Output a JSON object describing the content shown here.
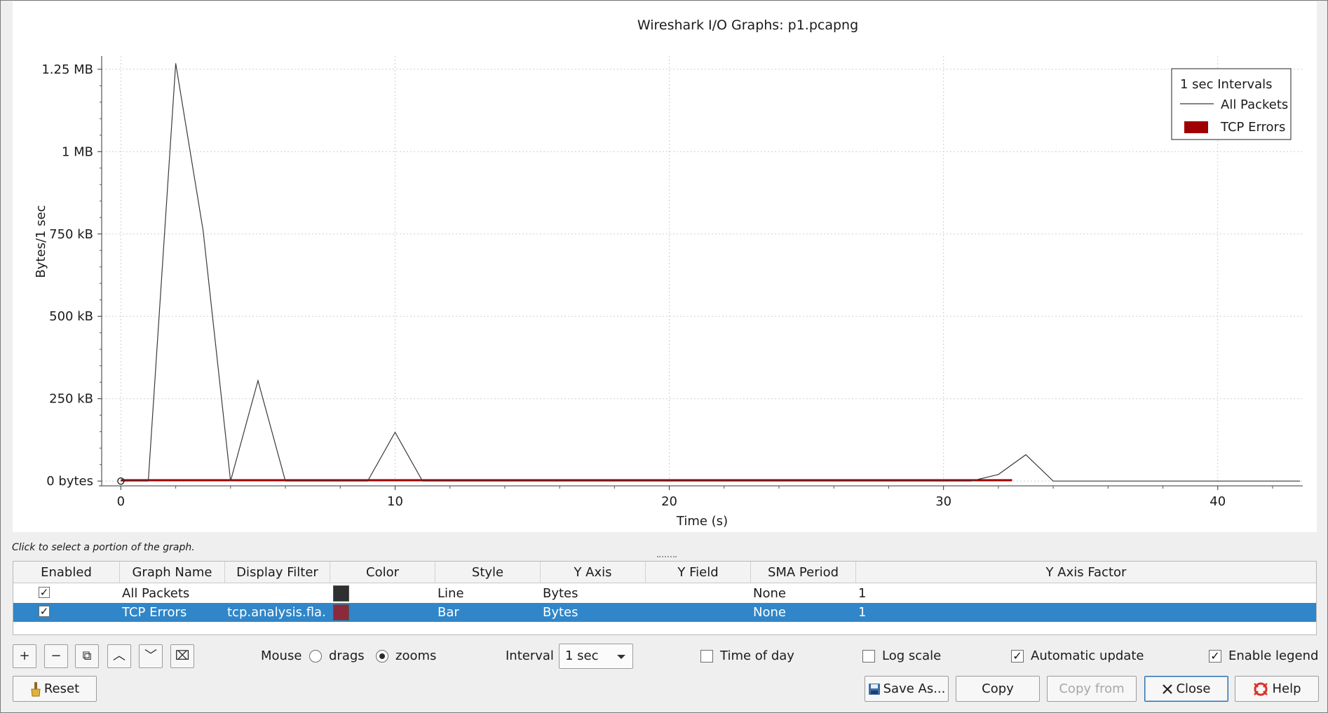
{
  "chart_data": {
    "type": "line",
    "title": "Wireshark I/O Graphs: p1.pcapng",
    "xlabel": "Time (s)",
    "ylabel": "Bytes/1 sec",
    "xlim": [
      -0.7,
      43.1
    ],
    "ylim": [
      -6000,
      1290000
    ],
    "x_ticks": [
      0,
      10,
      20,
      30,
      40
    ],
    "x_tick_labels": [
      "0",
      "10",
      "20",
      "30",
      "40"
    ],
    "y_ticks": [
      0,
      250000,
      500000,
      750000,
      1000000,
      1250000
    ],
    "y_tick_labels": [
      "0 bytes",
      "250 kB",
      "500 kB",
      "750 kB",
      "1 MB",
      "1.25 MB"
    ],
    "grid": true,
    "legend_position": "top-right",
    "legend_title": "1 sec Intervals",
    "series": [
      {
        "name": "All Packets",
        "style": "line",
        "color": "#3a3a3a",
        "x": [
          0,
          1,
          2,
          3,
          4,
          5,
          6,
          7,
          8,
          9,
          10,
          11,
          12,
          13,
          14,
          15,
          16,
          17,
          18,
          19,
          20,
          21,
          22,
          23,
          24,
          25,
          26,
          27,
          28,
          29,
          30,
          31,
          32,
          33,
          34,
          35,
          36,
          37,
          38,
          39,
          40,
          41,
          42,
          43
        ],
        "values": [
          0,
          0,
          1268000,
          760000,
          0,
          305000,
          0,
          0,
          0,
          0,
          148000,
          0,
          0,
          0,
          0,
          0,
          0,
          0,
          0,
          0,
          0,
          0,
          0,
          0,
          0,
          0,
          0,
          0,
          0,
          0,
          0,
          0,
          20000,
          80000,
          0,
          0,
          0,
          0,
          0,
          0,
          0,
          0,
          0,
          0
        ]
      },
      {
        "name": "TCP Errors",
        "style": "bar",
        "color": "#a00000",
        "x_range": [
          0,
          32.5
        ],
        "values_note": "",
        "value": 1500
      }
    ]
  },
  "footer": {
    "hint": "Click to select a portion of the graph.",
    "mouse_label": "Mouse",
    "drags_label": "drags",
    "zooms_label": "zooms",
    "interval_label": "Interval",
    "interval_value": "1 sec",
    "time_of_day_label": "Time of day",
    "log_scale_label": "Log scale",
    "automatic_update_label": "Automatic update",
    "enable_legend_label": "Enable legend"
  },
  "table": {
    "headers": [
      "Enabled",
      "Graph Name",
      "Display Filter",
      "Color",
      "Style",
      "Y Axis",
      "Y Field",
      "SMA Period",
      "Y Axis Factor"
    ],
    "rows": [
      {
        "enabled": "✓",
        "name": "All Packets",
        "filter": "",
        "color": "#2d2f30",
        "style": "Line",
        "y_axis": "Bytes",
        "y_field": "",
        "sma": "None",
        "factor": "1"
      },
      {
        "enabled": "✓",
        "name": "TCP Errors",
        "filter": "tcp.analysis.fla...",
        "color": "#8b2a3a",
        "style": "Bar",
        "y_axis": "Bytes",
        "y_field": "",
        "sma": "None",
        "factor": "1"
      }
    ]
  },
  "toolbar": {
    "add_icon": "+",
    "remove_icon": "−",
    "copy_icon": "⧉",
    "up_icon": "︿",
    "down_icon": "﹀",
    "clear_icon": "⌧"
  },
  "buttons": {
    "reset": "Reset",
    "save_as": "Save As...",
    "copy": "Copy",
    "copy_from": "Copy from",
    "close": "Close",
    "help": "Help"
  }
}
